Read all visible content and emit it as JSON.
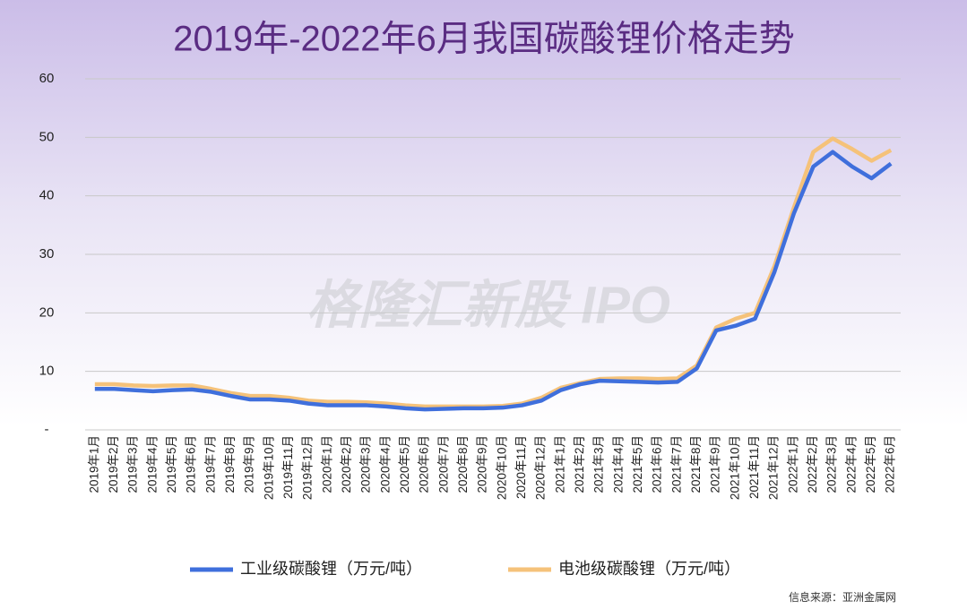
{
  "chart_data": {
    "type": "line",
    "title": "2019年-2022年6月我国碳酸锂价格走势",
    "watermark": "格隆汇新股 IPO",
    "source": "信息来源：亚洲金属网",
    "categories": [
      "2019年1月",
      "2019年2月",
      "2019年3月",
      "2019年4月",
      "2019年5月",
      "2019年6月",
      "2019年7月",
      "2019年8月",
      "2019年9月",
      "2019年10月",
      "2019年11月",
      "2019年12月",
      "2020年1月",
      "2020年2月",
      "2020年3月",
      "2020年4月",
      "2020年5月",
      "2020年6月",
      "2020年7月",
      "2020年8月",
      "2020年9月",
      "2020年10月",
      "2020年11月",
      "2020年12月",
      "2021年1月",
      "2021年2月",
      "2021年3月",
      "2021年4月",
      "2021年5月",
      "2021年6月",
      "2021年7月",
      "2021年8月",
      "2021年9月",
      "2021年10月",
      "2021年11月",
      "2021年12月",
      "2022年1月",
      "2022年2月",
      "2022年3月",
      "2022年4月",
      "2022年5月",
      "2022年6月"
    ],
    "series": [
      {
        "name": "工业级碳酸锂（万元/吨）",
        "color": "#3f6fdc",
        "values": [
          7.0,
          7.0,
          6.8,
          6.6,
          6.8,
          6.9,
          6.5,
          5.8,
          5.2,
          5.2,
          5.0,
          4.5,
          4.2,
          4.2,
          4.2,
          4.0,
          3.7,
          3.5,
          3.6,
          3.7,
          3.7,
          3.8,
          4.2,
          5.0,
          6.8,
          7.8,
          8.4,
          8.3,
          8.2,
          8.1,
          8.2,
          10.5,
          17.0,
          17.8,
          19.0,
          27.0,
          37.0,
          45.0,
          47.5,
          45.0,
          43.0,
          45.5
        ]
      },
      {
        "name": "电池级碳酸锂（万元/吨）",
        "color": "#f5c27a",
        "values": [
          7.8,
          7.8,
          7.6,
          7.5,
          7.6,
          7.6,
          7.0,
          6.3,
          5.8,
          5.8,
          5.5,
          5.0,
          4.8,
          4.8,
          4.7,
          4.5,
          4.2,
          4.0,
          4.0,
          4.0,
          4.0,
          4.1,
          4.5,
          5.5,
          7.2,
          8.0,
          8.7,
          8.8,
          8.8,
          8.7,
          8.8,
          11.0,
          17.5,
          19.0,
          20.0,
          28.0,
          38.0,
          47.5,
          49.8,
          48.0,
          46.0,
          47.8
        ]
      }
    ],
    "ylim": [
      0,
      60
    ],
    "yticks": [
      {
        "value": 0,
        "label": "-"
      },
      10,
      20,
      30,
      40,
      50,
      60
    ],
    "grid": true
  }
}
